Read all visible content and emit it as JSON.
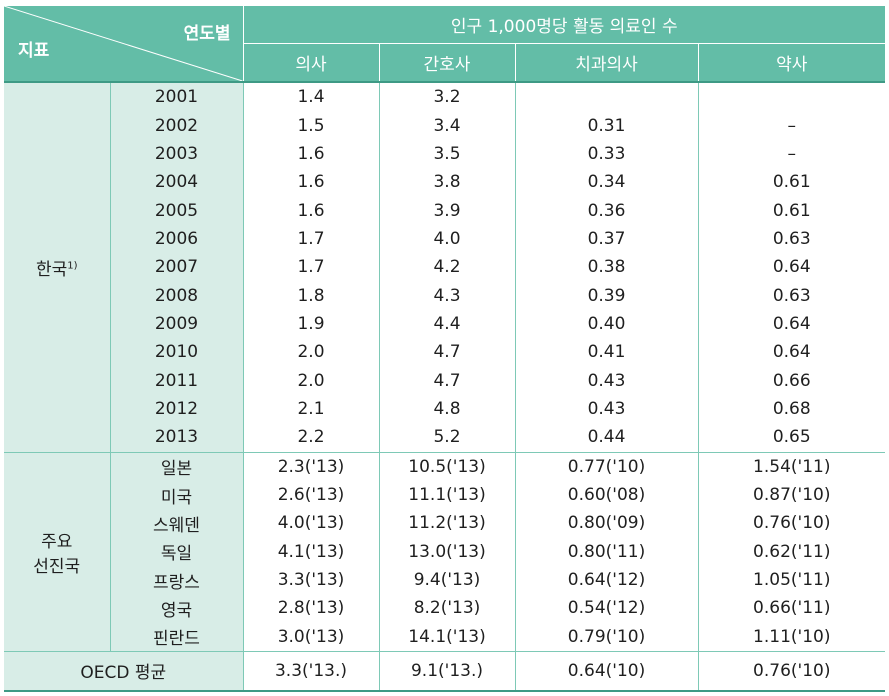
{
  "header": {
    "corner_top": "연도별",
    "corner_bottom": "지표",
    "group_title": "인구 1,000명당 활동 의료인 수",
    "columns": [
      "의사",
      "간호사",
      "치과의사",
      "약사"
    ]
  },
  "korea": {
    "label": "한국",
    "footnote": "1)",
    "rows": [
      {
        "year": "2001",
        "values": [
          "1.4",
          "3.2",
          "",
          ""
        ]
      },
      {
        "year": "2002",
        "values": [
          "1.5",
          "3.4",
          "0.31",
          "–"
        ]
      },
      {
        "year": "2003",
        "values": [
          "1.6",
          "3.5",
          "0.33",
          "–"
        ]
      },
      {
        "year": "2004",
        "values": [
          "1.6",
          "3.8",
          "0.34",
          "0.61"
        ]
      },
      {
        "year": "2005",
        "values": [
          "1.6",
          "3.9",
          "0.36",
          "0.61"
        ]
      },
      {
        "year": "2006",
        "values": [
          "1.7",
          "4.0",
          "0.37",
          "0.63"
        ]
      },
      {
        "year": "2007",
        "values": [
          "1.7",
          "4.2",
          "0.38",
          "0.64"
        ]
      },
      {
        "year": "2008",
        "values": [
          "1.8",
          "4.3",
          "0.39",
          "0.63"
        ]
      },
      {
        "year": "2009",
        "values": [
          "1.9",
          "4.4",
          "0.40",
          "0.64"
        ]
      },
      {
        "year": "2010",
        "values": [
          "2.0",
          "4.7",
          "0.41",
          "0.64"
        ]
      },
      {
        "year": "2011",
        "values": [
          "2.0",
          "4.7",
          "0.43",
          "0.66"
        ]
      },
      {
        "year": "2012",
        "values": [
          "2.1",
          "4.8",
          "0.43",
          "0.68"
        ]
      },
      {
        "year": "2013",
        "values": [
          "2.2",
          "5.2",
          "0.44",
          "0.65"
        ]
      }
    ]
  },
  "advanced": {
    "label_line1": "주요",
    "label_line2": "선진국",
    "rows": [
      {
        "country": "일본",
        "values": [
          "2.3('13)",
          "10.5('13)",
          "0.77('10)",
          "1.54('11)"
        ]
      },
      {
        "country": "미국",
        "values": [
          "2.6('13)",
          "11.1('13)",
          "0.60('08)",
          "0.87('10)"
        ]
      },
      {
        "country": "스웨덴",
        "values": [
          "4.0('13)",
          "11.2('13)",
          "0.80('09)",
          "0.76('10)"
        ]
      },
      {
        "country": "독일",
        "values": [
          "4.1('13)",
          "13.0('13)",
          "0.80('11)",
          "0.62('11)"
        ]
      },
      {
        "country": "프랑스",
        "values": [
          "3.3('13)",
          "9.4('13)",
          "0.64('12)",
          "1.05('11)"
        ]
      },
      {
        "country": "영국",
        "values": [
          "2.8('13)",
          "8.2('13)",
          "0.54('12)",
          "0.66('11)"
        ]
      },
      {
        "country": "핀란드",
        "values": [
          "3.0('13)",
          "14.1('13)",
          "0.79('10)",
          "1.11('10)"
        ]
      }
    ]
  },
  "oecd": {
    "label": "OECD 평균",
    "values": [
      "3.3('13.)",
      "9.1('13.)",
      "0.64('10)",
      "0.76('10)"
    ]
  },
  "colors": {
    "header_bg": "#63bda7",
    "label_bg": "#d8ede7",
    "border": "#7ec9b6",
    "thick_border": "#3e9a85"
  }
}
